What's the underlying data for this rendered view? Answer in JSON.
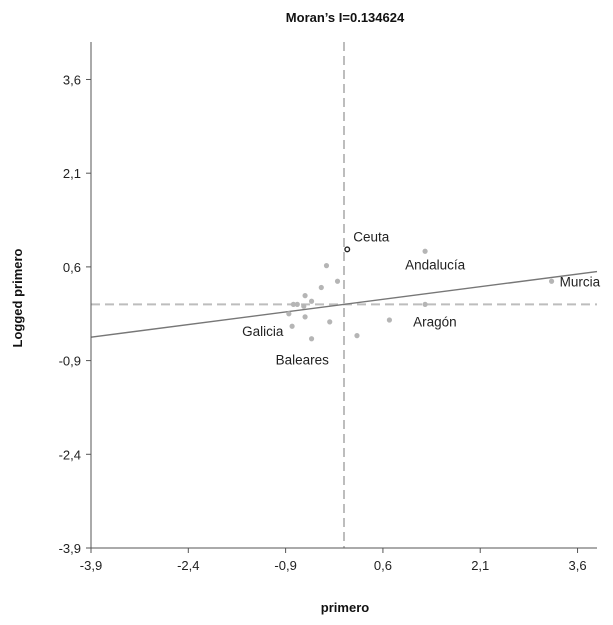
{
  "chart_data": {
    "type": "scatter",
    "title": "Moran’s I=0.134624",
    "xlabel": "primero",
    "ylabel": "Logged primero",
    "xlim": [
      -3.9,
      3.9
    ],
    "ylim": [
      -3.9,
      4.2
    ],
    "xticks": [
      -3.9,
      -2.4,
      -0.9,
      0.6,
      2.1,
      3.6
    ],
    "yticks": [
      -3.9,
      -2.4,
      -0.9,
      0.6,
      2.1,
      3.6
    ],
    "xtick_labels": [
      "-3,9",
      "-2,4",
      "-0,9",
      "0,6",
      "2,1",
      "3,6"
    ],
    "ytick_labels": [
      "-3,9",
      "-2,4",
      "-0,9",
      "0,6",
      "2,1",
      "3,6"
    ],
    "grid": false,
    "reference_lines": {
      "x": 0.0,
      "y": 0.0
    },
    "regression_line": {
      "slope": 0.134624,
      "intercept": 0.0
    },
    "points": [
      {
        "x": 0.05,
        "y": 0.88,
        "label": "Ceuta"
      },
      {
        "x": 1.25,
        "y": 0.85,
        "label": "Andalucía"
      },
      {
        "x": 3.2,
        "y": 0.37,
        "label": "Murcia"
      },
      {
        "x": 1.25,
        "y": 0.0,
        "label": "Aragón"
      },
      {
        "x": 0.7,
        "y": -0.25,
        "label": ""
      },
      {
        "x": -0.8,
        "y": -0.35,
        "label": "Galicia"
      },
      {
        "x": -0.5,
        "y": -0.55,
        "label": "Baleares"
      },
      {
        "x": 0.2,
        "y": -0.5,
        "label": ""
      },
      {
        "x": -0.27,
        "y": 0.62,
        "label": ""
      },
      {
        "x": -0.35,
        "y": 0.27,
        "label": ""
      },
      {
        "x": -0.1,
        "y": 0.37,
        "label": ""
      },
      {
        "x": -0.6,
        "y": 0.14,
        "label": ""
      },
      {
        "x": -0.6,
        "y": -0.2,
        "label": ""
      },
      {
        "x": -0.5,
        "y": 0.05,
        "label": ""
      },
      {
        "x": -0.78,
        "y": 0.0,
        "label": ""
      },
      {
        "x": -0.72,
        "y": 0.0,
        "label": ""
      },
      {
        "x": -0.62,
        "y": -0.03,
        "label": ""
      },
      {
        "x": -0.22,
        "y": -0.28,
        "label": ""
      },
      {
        "x": -0.85,
        "y": -0.15,
        "label": ""
      }
    ],
    "colors": {
      "point": "#b5b5b5",
      "highlight_point": "#222222",
      "regression_line": "#777777",
      "reference_line": "#bdbdbd",
      "axis": "#555555"
    }
  }
}
